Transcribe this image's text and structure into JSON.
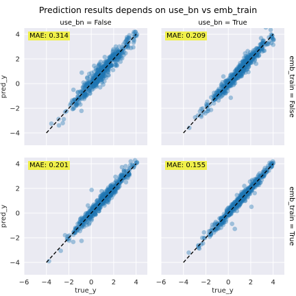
{
  "figure": {
    "title": "Prediction results depends on use_bn vs emb_train",
    "xlabel": "true_y",
    "ylabel": "pred_y",
    "colors": {
      "background": "#eaeaf2",
      "grid": "#ffffff",
      "points": "#1f77b4",
      "diagonal": "#000000",
      "annotation_box": "#f0f04a"
    }
  },
  "chart_data": {
    "type": "scatter",
    "layout": "2x2 facet grid",
    "col_variable": "use_bn",
    "row_variable": "emb_train",
    "xlim": [
      -6,
      5
    ],
    "ylim": [
      -5,
      4.5
    ],
    "x_ticks": [
      -6,
      -4,
      -2,
      0,
      2,
      4
    ],
    "y_ticks": [
      -4,
      -2,
      0,
      2,
      4
    ],
    "diagonal": {
      "style": "dashed",
      "from": [
        -4,
        -4
      ],
      "to": [
        4,
        4
      ]
    },
    "panels": [
      {
        "row": 0,
        "col": 0,
        "title": "use_bn = False",
        "row_label": "",
        "mae": "MAE: 0.314",
        "spread": 0.4
      },
      {
        "row": 0,
        "col": 1,
        "title": "use_bn = True",
        "row_label": "emb_train = False",
        "mae": "MAE: 0.209",
        "spread": 0.27
      },
      {
        "row": 1,
        "col": 0,
        "title": "",
        "row_label": "",
        "mae": "MAE: 0.201",
        "spread": 0.26
      },
      {
        "row": 1,
        "col": 1,
        "title": "",
        "row_label": "emb_train = True",
        "mae": "MAE: 0.155",
        "spread": 0.2
      }
    ]
  }
}
